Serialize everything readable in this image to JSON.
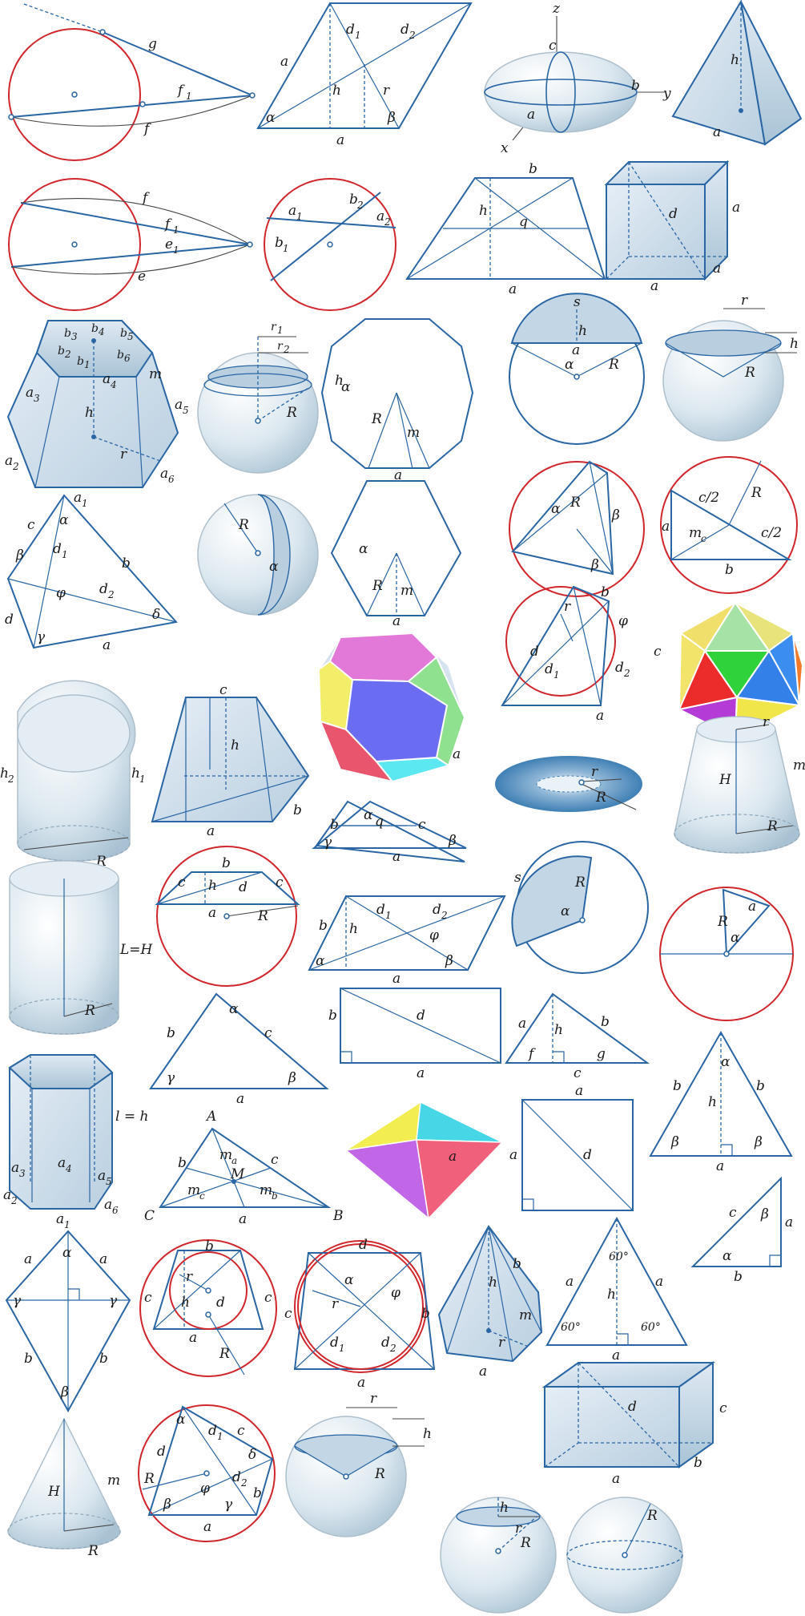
{
  "labels": {
    "g": "g",
    "f": "f",
    "f1": "f",
    "e": "e",
    "e1": "e",
    "a": "a",
    "b": "b",
    "c": "c",
    "d": "d",
    "d1": "d",
    "d2": "d",
    "h": "h",
    "r": "r",
    "R": "R",
    "H": "H",
    "m": "m",
    "q": "q",
    "s": "s",
    "x": "x",
    "y": "y",
    "z": "z",
    "alpha": "α",
    "beta": "β",
    "gamma": "γ",
    "delta": "δ",
    "phi": "φ",
    "a1": "a",
    "a2": "a",
    "a3": "a",
    "a4": "a",
    "a5": "a",
    "a6": "a",
    "b1": "b",
    "b2": "b",
    "b3": "b",
    "b4": "b",
    "b5": "b",
    "b6": "b",
    "r1": "r",
    "r2": "r",
    "h1": "h",
    "h2": "h",
    "mc_m": "m",
    "ma_m": "m",
    "mb_m": "m",
    "c2": "c/2",
    "sub1": "1",
    "sub2": "2",
    "sub3": "3",
    "sub4": "4",
    "sub5": "5",
    "sub6": "6",
    "sub_a": "a",
    "sub_b": "b",
    "sub_c": "c",
    "LeqH": "L=H",
    "leqh": "l = h",
    "A": "A",
    "B": "B",
    "C": "C",
    "M": "M",
    "deg60": "60°"
  }
}
